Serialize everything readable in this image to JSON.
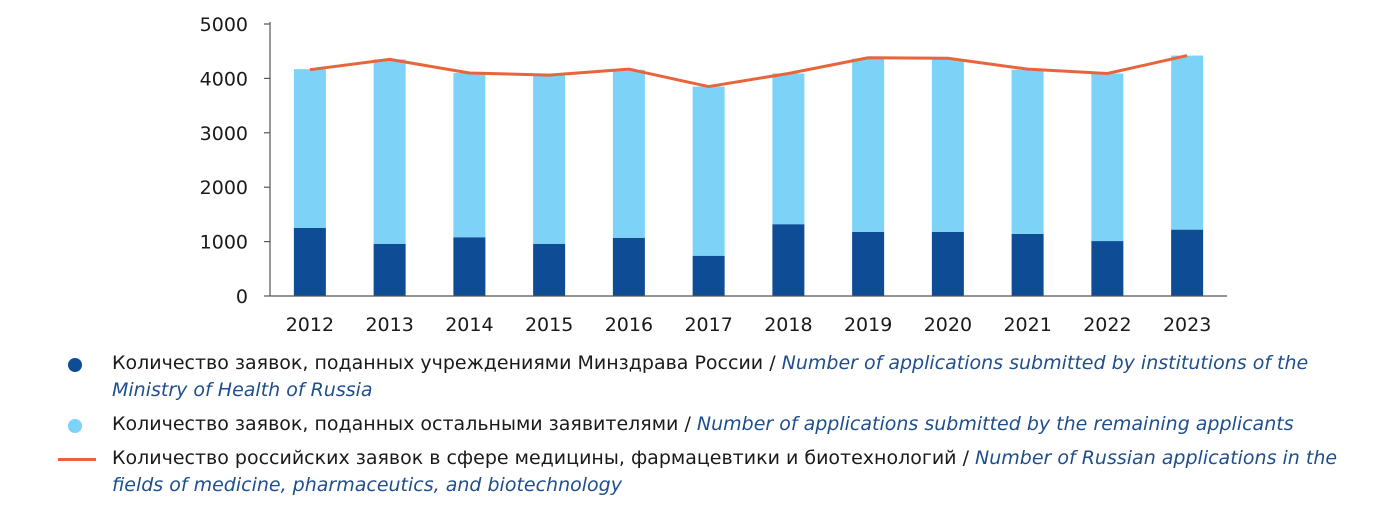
{
  "chart_data": {
    "type": "bar",
    "stacked": true,
    "categories": [
      "2012",
      "2013",
      "2014",
      "2015",
      "2016",
      "2017",
      "2018",
      "2019",
      "2020",
      "2021",
      "2022",
      "2023"
    ],
    "series": [
      {
        "name": "Количество заявок, поданных учреждениями Минздрава России / Number of applications submitted by institutions of the Ministry of Health of Russia",
        "kind": "bar",
        "color": "#0f4c96",
        "values": [
          1250,
          960,
          1080,
          960,
          1070,
          740,
          1320,
          1180,
          1180,
          1140,
          1010,
          1220
        ]
      },
      {
        "name": "Количество заявок, поданных остальными заявителями / Number of applications submitted by the remaining applicants",
        "kind": "bar",
        "color": "#7dd3f7",
        "values": [
          2920,
          3390,
          3020,
          3100,
          3090,
          3110,
          2770,
          3180,
          3170,
          3020,
          3080,
          3200
        ]
      },
      {
        "name": "Количество российских заявок в сфере медицины, фармацевтики и биотехнологий / Number of Russian applications in the fields of medicine, pharmaceutics, and biotechnology",
        "kind": "line",
        "color": "#e8643a",
        "values": [
          4160,
          4350,
          4100,
          4060,
          4170,
          3850,
          4090,
          4380,
          4370,
          4170,
          4090,
          4420
        ]
      }
    ],
    "ylim": [
      0,
      5000
    ],
    "yticks": [
      "0",
      "1000",
      "2000",
      "3000",
      "4000",
      "5000"
    ],
    "xlabel": "",
    "ylabel": "",
    "grid": false,
    "legend_position": "bottom"
  },
  "legend": [
    {
      "marker": "dot",
      "color": "#0f4c96",
      "ru": "Количество заявок, поданных учреждениями Минздрава России / ",
      "en": "Number of applications submitted by institutions of the Ministry of Health of Russia"
    },
    {
      "marker": "dot",
      "color": "#7dd3f7",
      "ru": "Количество заявок, поданных остальными заявителями / ",
      "en": "Number of applications submitted by the remaining applicants"
    },
    {
      "marker": "line",
      "color": "#e8643a",
      "ru": "Количество российских заявок в сфере медицины, фармацевтики и биотехнологий / ",
      "en": "Number of Russian applications in the fields of medicine, pharmaceutics, and biotechnology"
    }
  ]
}
